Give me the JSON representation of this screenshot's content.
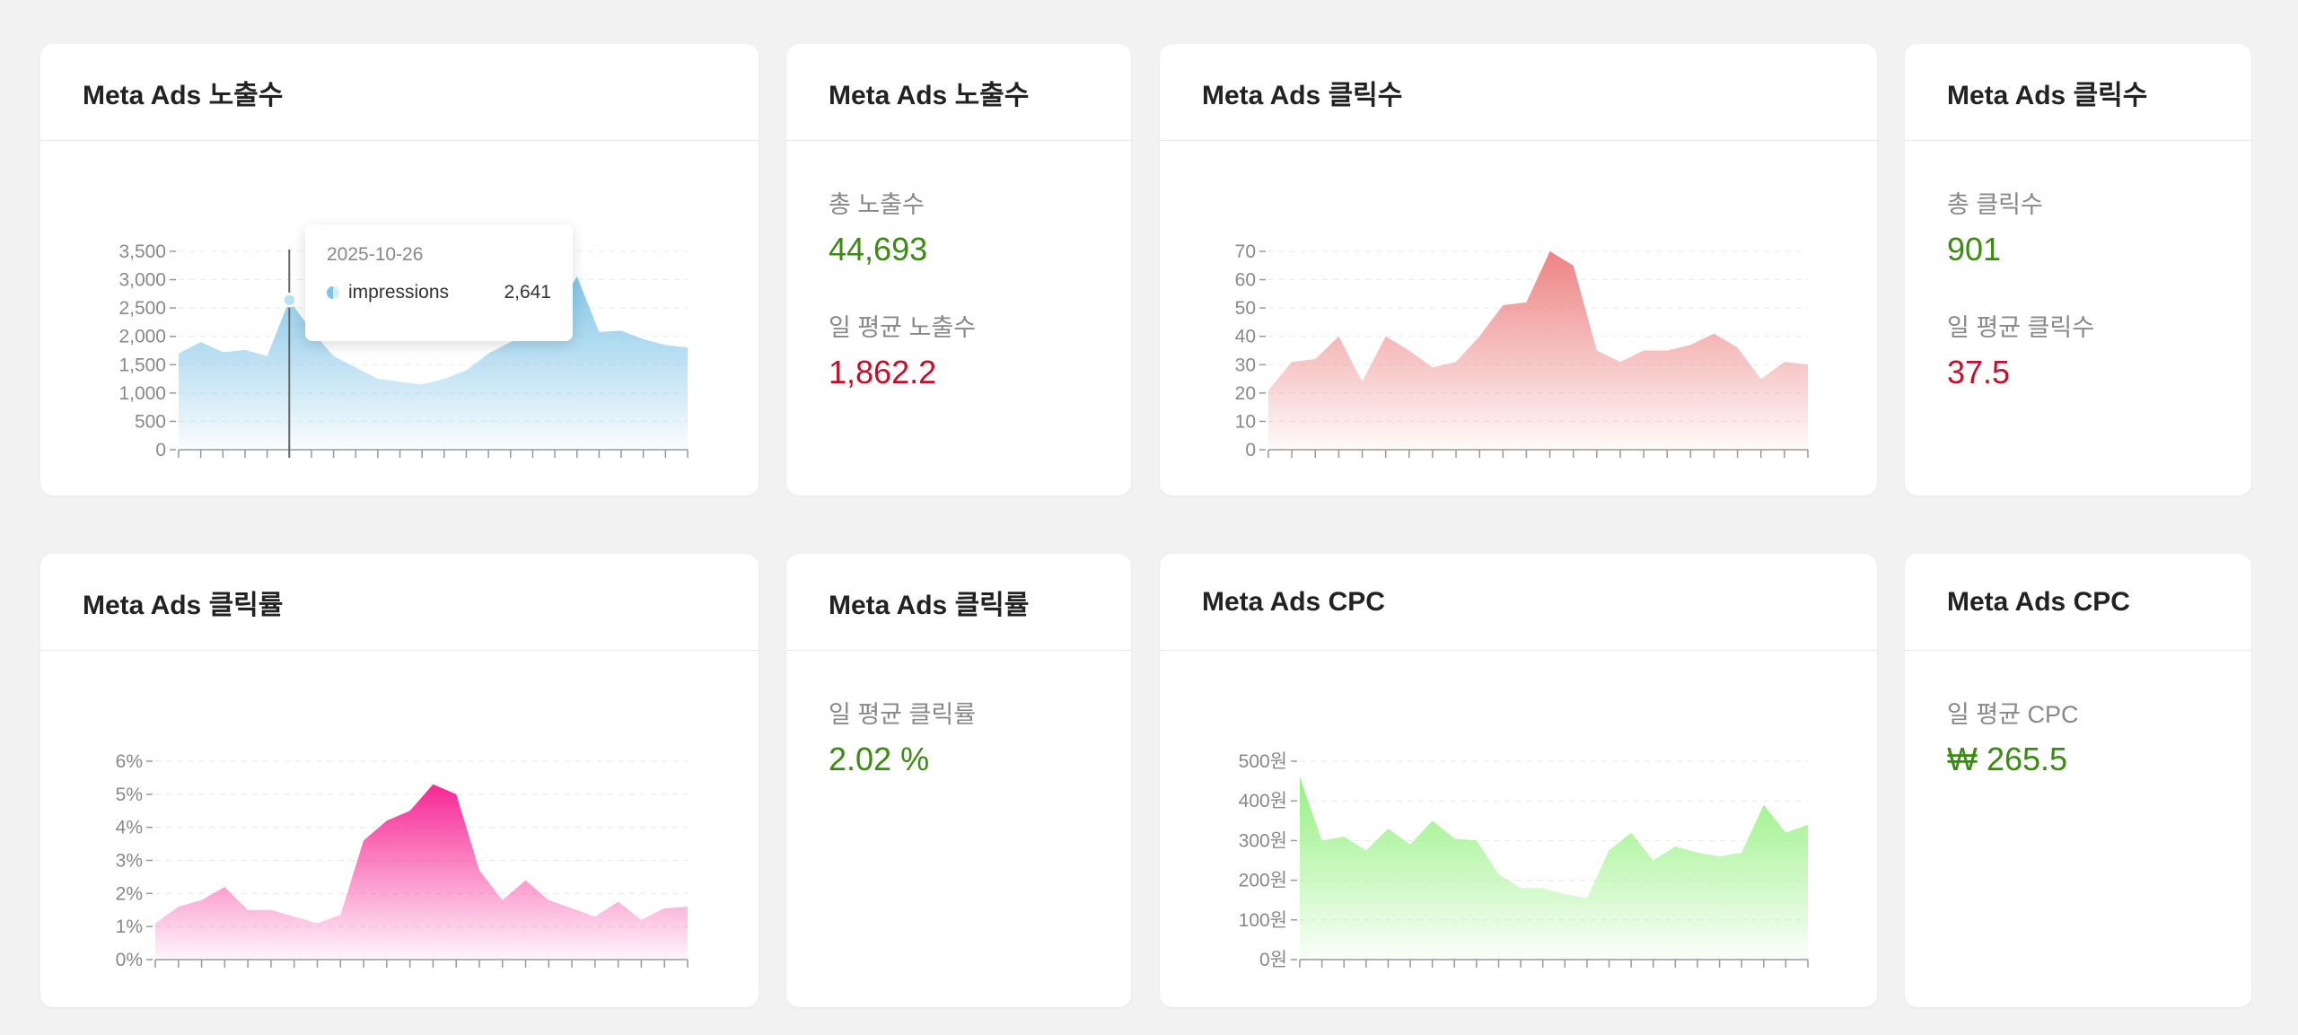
{
  "cards": {
    "impressions_chart": {
      "title": "Meta Ads 노출수"
    },
    "impressions_stats": {
      "title": "Meta Ads 노출수",
      "total_label": "총 노출수",
      "total_value": "44,693",
      "avg_label": "일 평균 노출수",
      "avg_value": "1,862.2"
    },
    "clicks_chart": {
      "title": "Meta Ads 클릭수"
    },
    "clicks_stats": {
      "title": "Meta Ads 클릭수",
      "total_label": "총 클릭수",
      "total_value": "901",
      "avg_label": "일 평균 클릭수",
      "avg_value": "37.5"
    },
    "ctr_chart": {
      "title": "Meta Ads 클릭률"
    },
    "ctr_stats": {
      "title": "Meta Ads 클릭률",
      "avg_label": "일 평균 클릭률",
      "avg_value": "2.02 %"
    },
    "cpc_chart": {
      "title": "Meta Ads CPC"
    },
    "cpc_stats": {
      "title": "Meta Ads CPC",
      "avg_label": "일 평균 CPC",
      "avg_value": "₩ 265.5"
    }
  },
  "tooltip": {
    "date": "2025-10-26",
    "series": "impressions",
    "value": "2,641"
  },
  "colors": {
    "green": "#3b8a12",
    "red": "#c2102c",
    "impressions": "#7cc3e6",
    "clicks": "#ec7d7d",
    "ctr": "#f61c8f",
    "cpc": "#8ff07a"
  },
  "chart_data": [
    {
      "id": "impressions",
      "type": "area",
      "series": [
        {
          "name": "impressions",
          "values": [
            1700,
            1900,
            1720,
            1760,
            1650,
            2641,
            2100,
            1650,
            1450,
            1250,
            1200,
            1150,
            1250,
            1400,
            1700,
            1900,
            2050,
            2350,
            3060,
            2080,
            2100,
            1950,
            1850,
            1800
          ]
        }
      ],
      "yticks": [
        "0",
        "500",
        "1,000",
        "1,500",
        "2,000",
        "2,500",
        "3,000",
        "3,500"
      ],
      "ylim": [
        0,
        3500
      ],
      "color": "#7cc3e6"
    },
    {
      "id": "clicks",
      "type": "area",
      "values": [
        21,
        31,
        32,
        40,
        24,
        40,
        35,
        29,
        31,
        40,
        51,
        52,
        70,
        65,
        35,
        31,
        35,
        35,
        37,
        41,
        36,
        25,
        31,
        30
      ],
      "yticks": [
        "0",
        "10",
        "20",
        "30",
        "40",
        "50",
        "60",
        "70"
      ],
      "ylim": [
        0,
        70
      ],
      "color": "#ec7d7d"
    },
    {
      "id": "ctr",
      "type": "area",
      "values": [
        1.1,
        1.6,
        1.8,
        2.2,
        1.5,
        1.5,
        1.3,
        1.1,
        1.35,
        3.6,
        4.2,
        4.5,
        5.3,
        5.0,
        2.7,
        1.8,
        2.4,
        1.8,
        1.55,
        1.3,
        1.75,
        1.2,
        1.55,
        1.6
      ],
      "yticks": [
        "0%",
        "1%",
        "2%",
        "3%",
        "4%",
        "5%",
        "6%"
      ],
      "ylim": [
        0,
        6
      ],
      "color": "#f61c8f"
    },
    {
      "id": "cpc",
      "type": "area",
      "values": [
        460,
        300,
        310,
        275,
        330,
        290,
        350,
        305,
        300,
        215,
        180,
        180,
        165,
        155,
        275,
        320,
        250,
        285,
        270,
        260,
        270,
        390,
        320,
        340
      ],
      "yticks": [
        "0원",
        "100원",
        "200원",
        "300원",
        "400원",
        "500원"
      ],
      "ylim": [
        0,
        500
      ],
      "color": "#8ff07a"
    }
  ]
}
